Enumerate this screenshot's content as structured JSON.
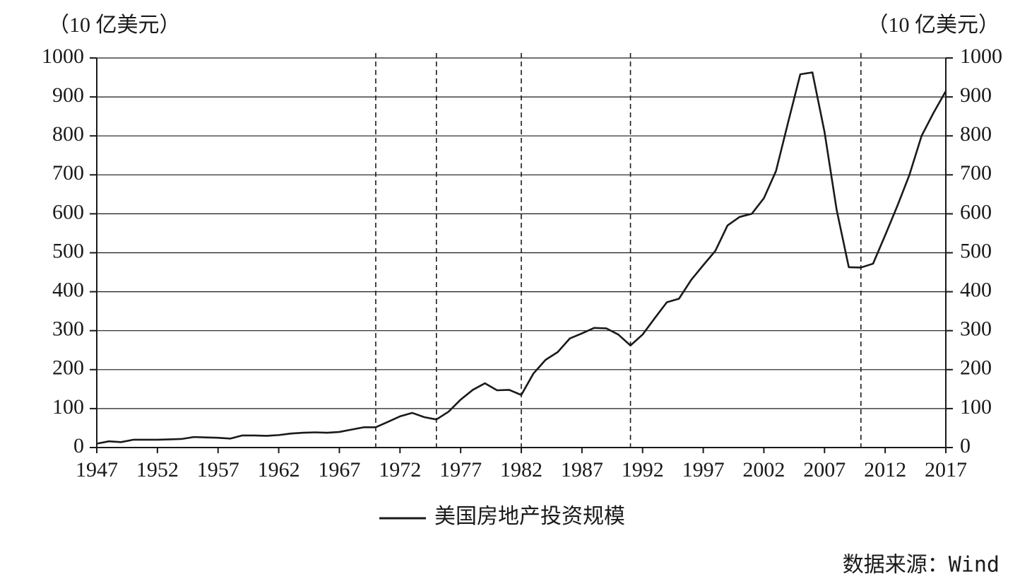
{
  "chart_data": {
    "type": "line",
    "y_label": "（10 亿美元）",
    "y2_label": "（10 亿美元）",
    "source": "数据来源：Wind",
    "x": [
      1947,
      1948,
      1949,
      1950,
      1951,
      1952,
      1953,
      1954,
      1955,
      1956,
      1957,
      1958,
      1959,
      1960,
      1961,
      1962,
      1963,
      1964,
      1965,
      1966,
      1967,
      1968,
      1969,
      1970,
      1971,
      1972,
      1973,
      1974,
      1975,
      1976,
      1977,
      1978,
      1979,
      1980,
      1981,
      1982,
      1983,
      1984,
      1985,
      1986,
      1987,
      1988,
      1989,
      1990,
      1991,
      1992,
      1993,
      1994,
      1995,
      1996,
      1997,
      1998,
      1999,
      2000,
      2001,
      2002,
      2003,
      2004,
      2005,
      2006,
      2007,
      2008,
      2009,
      2010,
      2011,
      2012,
      2013,
      2014,
      2015,
      2016,
      2017
    ],
    "series": [
      {
        "name": "美国房地产投资规模",
        "color": "#1a1a1a",
        "values": [
          10,
          16,
          14,
          20,
          20,
          20,
          21,
          22,
          27,
          26,
          25,
          23,
          31,
          31,
          30,
          32,
          36,
          38,
          39,
          38,
          40,
          46,
          52,
          52,
          66,
          80,
          89,
          78,
          72,
          92,
          123,
          148,
          165,
          147,
          148,
          135,
          190,
          225,
          245,
          280,
          293,
          307,
          306,
          290,
          262,
          290,
          332,
          373,
          382,
          430,
          468,
          505,
          570,
          592,
          600,
          640,
          710,
          835,
          958,
          963,
          810,
          610,
          463,
          462,
          472,
          545,
          620,
          700,
          800,
          860,
          915
        ]
      }
    ],
    "xlim": [
      1947,
      2017
    ],
    "xticks": [
      1947,
      1952,
      1957,
      1962,
      1967,
      1972,
      1977,
      1982,
      1987,
      1992,
      1997,
      2002,
      2007,
      2012,
      2017
    ],
    "ylim": [
      0,
      1000
    ],
    "yticks": [
      0,
      100,
      200,
      300,
      400,
      500,
      600,
      700,
      800,
      900,
      1000
    ],
    "y2lim": [
      0,
      1000
    ],
    "y2ticks": [
      0,
      100,
      200,
      300,
      400,
      500,
      600,
      700,
      800,
      900,
      1000
    ],
    "vlines": [
      1970,
      1975,
      1982,
      1991,
      2010
    ],
    "grid": true
  }
}
